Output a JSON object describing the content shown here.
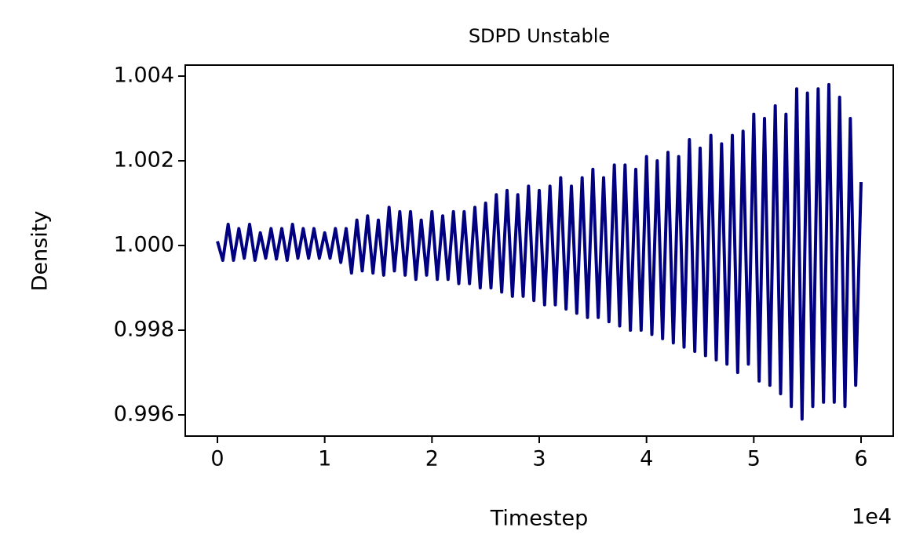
{
  "chart_data": {
    "type": "line",
    "title": "SDPD Unstable",
    "xlabel": "Timestep",
    "ylabel": "Density",
    "x_offset_label": "1e4",
    "color": "#000080",
    "x": [
      0,
      500,
      1000,
      1500,
      2000,
      2500,
      3000,
      3500,
      4000,
      4500,
      5000,
      5500,
      6000,
      6500,
      7000,
      7500,
      8000,
      8500,
      9000,
      9500,
      10000,
      10500,
      11000,
      11500,
      12000,
      12500,
      13000,
      13500,
      14000,
      14500,
      15000,
      15500,
      16000,
      16500,
      17000,
      17500,
      18000,
      18500,
      19000,
      19500,
      20000,
      20500,
      21000,
      21500,
      22000,
      22500,
      23000,
      23500,
      24000,
      24500,
      25000,
      25500,
      26000,
      26500,
      27000,
      27500,
      28000,
      28500,
      29000,
      29500,
      30000,
      30500,
      31000,
      31500,
      32000,
      32500,
      33000,
      33500,
      34000,
      34500,
      35000,
      35500,
      36000,
      36500,
      37000,
      37500,
      38000,
      38500,
      39000,
      39500,
      40000,
      40500,
      41000,
      41500,
      42000,
      42500,
      43000,
      43500,
      44000,
      44500,
      45000,
      45500,
      46000,
      46500,
      47000,
      47500,
      48000,
      48500,
      49000,
      49500,
      50000,
      50500,
      51000,
      51500,
      52000,
      52500,
      53000,
      53500,
      54000,
      54500,
      55000,
      55500,
      56000,
      56500,
      57000,
      57500,
      58000,
      58500,
      59000,
      59500,
      60000
    ],
    "values": [
      1.0001,
      0.99965,
      1.0005,
      0.99965,
      1.0004,
      0.9997,
      1.0005,
      0.99965,
      1.0003,
      0.9997,
      1.0004,
      0.99968,
      1.0004,
      0.99965,
      1.0005,
      0.9997,
      1.0004,
      0.9997,
      1.0004,
      0.9997,
      1.0003,
      0.9997,
      1.0004,
      0.9996,
      1.0004,
      0.99935,
      1.0006,
      0.9994,
      1.0007,
      0.99935,
      1.0006,
      0.9993,
      1.0009,
      0.9994,
      1.0008,
      0.9993,
      1.0008,
      0.9992,
      1.0006,
      0.9993,
      1.0008,
      0.9992,
      1.0007,
      0.9992,
      1.0008,
      0.9991,
      1.0008,
      0.9991,
      1.0009,
      0.999,
      1.001,
      0.999,
      1.0012,
      0.9989,
      1.0013,
      0.9988,
      1.0012,
      0.9988,
      1.0014,
      0.9987,
      1.0013,
      0.9986,
      1.0014,
      0.9986,
      1.0016,
      0.9985,
      1.0014,
      0.9984,
      1.0016,
      0.9983,
      1.0018,
      0.9983,
      1.0016,
      0.9982,
      1.0019,
      0.9981,
      1.0019,
      0.998,
      1.0018,
      0.998,
      1.0021,
      0.9979,
      1.002,
      0.9978,
      1.0022,
      0.9977,
      1.0021,
      0.9976,
      1.0025,
      0.9975,
      1.0023,
      0.9974,
      1.0026,
      0.9973,
      1.0024,
      0.9972,
      1.0026,
      0.997,
      1.0027,
      0.9972,
      1.0031,
      0.9968,
      1.003,
      0.9967,
      1.0033,
      0.9965,
      1.0031,
      0.9962,
      1.0037,
      0.9959,
      1.0036,
      0.9962,
      1.0037,
      0.9963,
      1.0038,
      0.9963,
      1.0035,
      0.9962,
      1.003,
      0.9967,
      1.0015
    ],
    "xlim": [
      -3000,
      63000
    ],
    "xticks": [
      {
        "value": 0,
        "label": "0"
      },
      {
        "value": 10000,
        "label": "1"
      },
      {
        "value": 20000,
        "label": "2"
      },
      {
        "value": 30000,
        "label": "3"
      },
      {
        "value": 40000,
        "label": "4"
      },
      {
        "value": 50000,
        "label": "5"
      },
      {
        "value": 60000,
        "label": "6"
      }
    ],
    "ylim": [
      0.9955,
      1.00426
    ],
    "yticks": [
      0.996,
      0.998,
      {
        "value": 1,
        "label": "1.000"
      },
      1.002,
      1.004
    ],
    "grid": false
  }
}
